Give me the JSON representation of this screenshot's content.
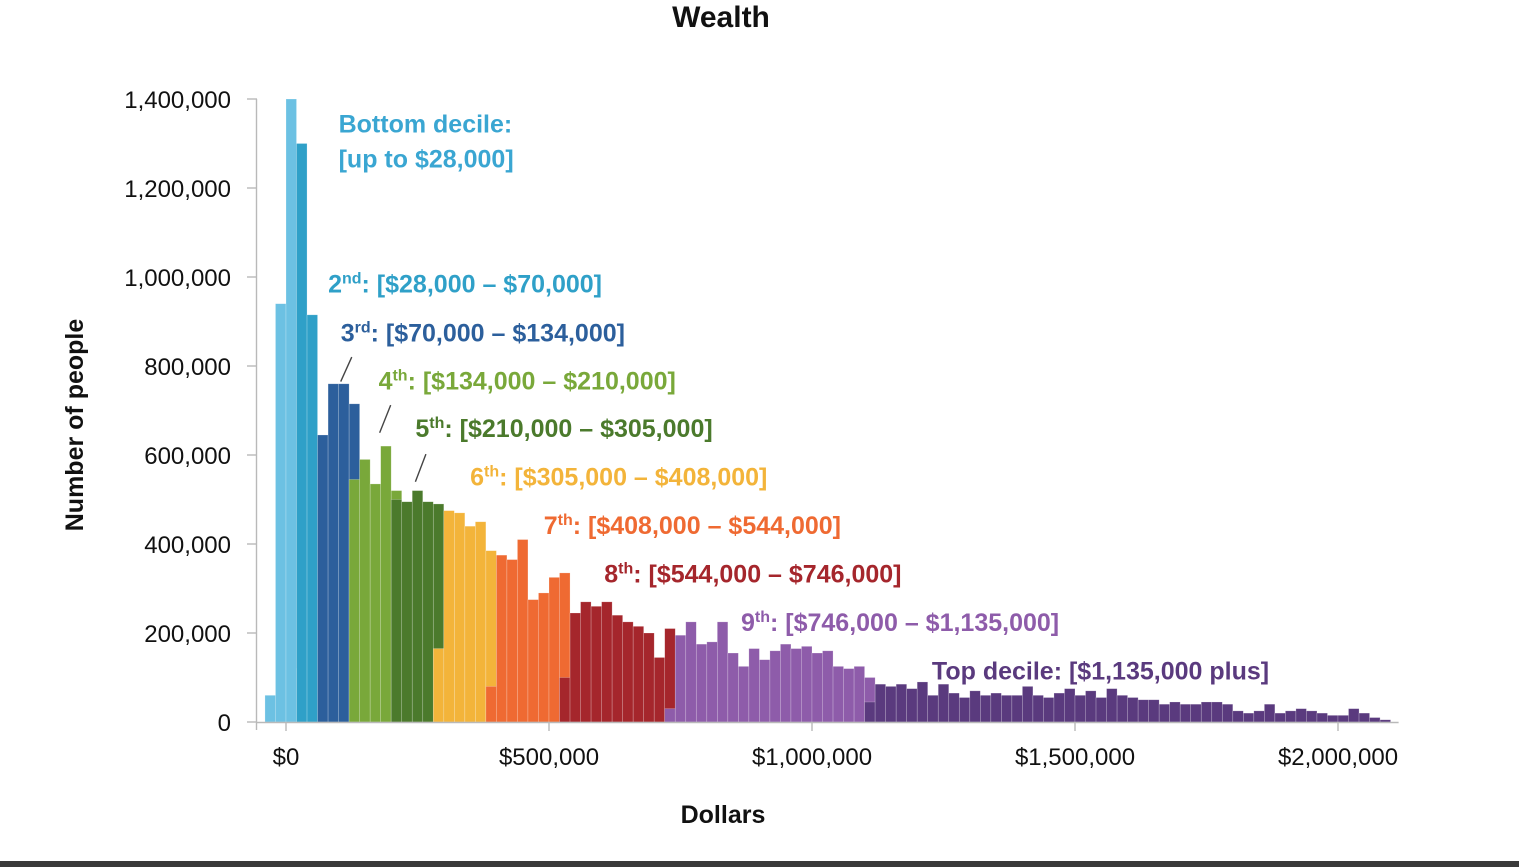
{
  "chart_data": {
    "type": "bar",
    "title": "Wealth",
    "xlabel": "Dollars",
    "ylabel": "Number of people",
    "xlim": [
      -45000,
      2100000
    ],
    "ylim": [
      0,
      1400000
    ],
    "bin_width": 20000,
    "x_ticks": [
      {
        "value": 0,
        "label": "$0"
      },
      {
        "value": 500000,
        "label": "$500,000"
      },
      {
        "value": 1000000,
        "label": "$1,000,000"
      },
      {
        "value": 1500000,
        "label": "$1,500,000"
      },
      {
        "value": 2000000,
        "label": "$2,000,000"
      }
    ],
    "y_ticks": [
      {
        "value": 0,
        "label": "0"
      },
      {
        "value": 200000,
        "label": "200,000"
      },
      {
        "value": 400000,
        "label": "400,000"
      },
      {
        "value": 600000,
        "label": "600,000"
      },
      {
        "value": 800000,
        "label": "800,000"
      },
      {
        "value": 1000000,
        "label": "1,000,000"
      },
      {
        "value": 1200000,
        "label": "1,200,000"
      },
      {
        "value": 1400000,
        "label": "1,400,000"
      }
    ],
    "series": [
      {
        "name": "Bottom decile",
        "color": "#6cc1e3",
        "bins": [
          [
            -40000,
            60000
          ],
          [
            -20000,
            940000
          ],
          [
            0,
            1400000
          ],
          [
            20000,
            120000
          ]
        ]
      },
      {
        "name": "2nd",
        "color": "#2fa0c8",
        "bins": [
          [
            20000,
            1300000
          ],
          [
            40000,
            915000
          ]
        ]
      },
      {
        "name": "3rd",
        "color": "#2c5f9c",
        "bins": [
          [
            60000,
            645000
          ],
          [
            80000,
            760000
          ],
          [
            100000,
            760000
          ],
          [
            120000,
            715000
          ]
        ]
      },
      {
        "name": "4th",
        "color": "#79a83a",
        "bins": [
          [
            120000,
            545000
          ],
          [
            140000,
            590000
          ],
          [
            160000,
            535000
          ],
          [
            180000,
            620000
          ],
          [
            200000,
            520000
          ]
        ]
      },
      {
        "name": "5th",
        "color": "#4b7a2c",
        "bins": [
          [
            200000,
            500000
          ],
          [
            220000,
            495000
          ],
          [
            240000,
            520000
          ],
          [
            260000,
            495000
          ],
          [
            280000,
            490000
          ]
        ]
      },
      {
        "name": "6th",
        "color": "#f3b43a",
        "bins": [
          [
            280000,
            165000
          ],
          [
            300000,
            475000
          ],
          [
            320000,
            470000
          ],
          [
            340000,
            440000
          ],
          [
            360000,
            450000
          ],
          [
            380000,
            385000
          ]
        ]
      },
      {
        "name": "7th",
        "color": "#ef6a32",
        "bins": [
          [
            380000,
            80000
          ],
          [
            400000,
            375000
          ],
          [
            420000,
            365000
          ],
          [
            440000,
            410000
          ],
          [
            460000,
            275000
          ],
          [
            480000,
            290000
          ],
          [
            500000,
            325000
          ],
          [
            520000,
            335000
          ]
        ]
      },
      {
        "name": "8th",
        "color": "#a5262c",
        "bins": [
          [
            520000,
            100000
          ],
          [
            540000,
            245000
          ],
          [
            560000,
            270000
          ],
          [
            580000,
            260000
          ],
          [
            600000,
            270000
          ],
          [
            620000,
            240000
          ],
          [
            640000,
            225000
          ],
          [
            660000,
            215000
          ],
          [
            680000,
            200000
          ],
          [
            700000,
            145000
          ],
          [
            720000,
            210000
          ]
        ]
      },
      {
        "name": "9th",
        "color": "#8e5caa",
        "bins": [
          [
            720000,
            30000
          ],
          [
            740000,
            195000
          ],
          [
            760000,
            225000
          ],
          [
            780000,
            175000
          ],
          [
            800000,
            180000
          ],
          [
            820000,
            225000
          ],
          [
            840000,
            155000
          ],
          [
            860000,
            125000
          ],
          [
            880000,
            165000
          ],
          [
            900000,
            140000
          ],
          [
            920000,
            160000
          ],
          [
            940000,
            175000
          ],
          [
            960000,
            165000
          ],
          [
            980000,
            170000
          ],
          [
            1000000,
            155000
          ],
          [
            1020000,
            160000
          ],
          [
            1040000,
            125000
          ],
          [
            1060000,
            120000
          ],
          [
            1080000,
            125000
          ],
          [
            1100000,
            100000
          ]
        ]
      },
      {
        "name": "Top decile",
        "color": "#5a3a7e",
        "bins": [
          [
            1100000,
            45000
          ],
          [
            1120000,
            85000
          ],
          [
            1140000,
            80000
          ],
          [
            1160000,
            85000
          ],
          [
            1180000,
            75000
          ],
          [
            1200000,
            90000
          ],
          [
            1220000,
            60000
          ],
          [
            1240000,
            85000
          ],
          [
            1260000,
            65000
          ],
          [
            1280000,
            55000
          ],
          [
            1300000,
            70000
          ],
          [
            1320000,
            60000
          ],
          [
            1340000,
            65000
          ],
          [
            1360000,
            60000
          ],
          [
            1380000,
            60000
          ],
          [
            1400000,
            80000
          ],
          [
            1420000,
            60000
          ],
          [
            1440000,
            55000
          ],
          [
            1460000,
            65000
          ],
          [
            1480000,
            75000
          ],
          [
            1500000,
            60000
          ],
          [
            1520000,
            70000
          ],
          [
            1540000,
            55000
          ],
          [
            1560000,
            75000
          ],
          [
            1580000,
            60000
          ],
          [
            1600000,
            55000
          ],
          [
            1620000,
            50000
          ],
          [
            1640000,
            50000
          ],
          [
            1660000,
            40000
          ],
          [
            1680000,
            45000
          ],
          [
            1700000,
            40000
          ],
          [
            1720000,
            40000
          ],
          [
            1740000,
            45000
          ],
          [
            1760000,
            45000
          ],
          [
            1780000,
            40000
          ],
          [
            1800000,
            25000
          ],
          [
            1820000,
            20000
          ],
          [
            1840000,
            25000
          ],
          [
            1860000,
            40000
          ],
          [
            1880000,
            20000
          ],
          [
            1900000,
            25000
          ],
          [
            1920000,
            30000
          ],
          [
            1940000,
            25000
          ],
          [
            1960000,
            20000
          ],
          [
            1980000,
            15000
          ],
          [
            2000000,
            15000
          ],
          [
            2020000,
            30000
          ],
          [
            2040000,
            20000
          ],
          [
            2060000,
            10000
          ],
          [
            2080000,
            5000
          ]
        ]
      }
    ],
    "annotations": [
      {
        "series": "Bottom decile",
        "lines": [
          {
            "rank": "Bottom decile:",
            "sup": "",
            "range": ""
          },
          {
            "rank": "",
            "sup": "",
            "range": "[up to $28,000]"
          }
        ],
        "x": 100000,
        "y": 1325000,
        "color": "#3aa6d2"
      },
      {
        "series": "2nd",
        "lines": [
          {
            "rank": "2",
            "sup": "nd",
            "range": ": [$28,000 – $70,000]"
          }
        ],
        "x": 80000,
        "y": 965000,
        "color": "#2fa0c8"
      },
      {
        "series": "3rd",
        "lines": [
          {
            "rank": "3",
            "sup": "rd",
            "range": ": [$70,000 – $134,000]"
          }
        ],
        "x": 104000,
        "y": 855000,
        "color": "#2c5f9c",
        "pointer": [
          [
            125000,
            820000
          ],
          [
            104000,
            765000
          ]
        ]
      },
      {
        "series": "4th",
        "lines": [
          {
            "rank": "4",
            "sup": "th",
            "range": ": [$134,000 – $210,000]"
          }
        ],
        "x": 176000,
        "y": 747000,
        "color": "#79a83a",
        "pointer": [
          [
            199000,
            712000
          ],
          [
            178000,
            650000
          ]
        ]
      },
      {
        "series": "5th",
        "lines": [
          {
            "rank": "5",
            "sup": "th",
            "range": ": [$210,000 – $305,000]"
          }
        ],
        "x": 246000,
        "y": 640000,
        "color": "#4b7a2c",
        "pointer": [
          [
            266000,
            602000
          ],
          [
            246000,
            540000
          ]
        ]
      },
      {
        "series": "6th",
        "lines": [
          {
            "rank": "6",
            "sup": "th",
            "range": ": [$305,000 – $408,000]"
          }
        ],
        "x": 350000,
        "y": 531000,
        "color": "#f3b43a"
      },
      {
        "series": "7th",
        "lines": [
          {
            "rank": "7",
            "sup": "th",
            "range": ": [$408,000 – $544,000]"
          }
        ],
        "x": 490000,
        "y": 423000,
        "color": "#ef6a32"
      },
      {
        "series": "8th",
        "lines": [
          {
            "rank": "8",
            "sup": "th",
            "range": ": [$544,000 – $746,000]"
          }
        ],
        "x": 605000,
        "y": 314000,
        "color": "#a5262c"
      },
      {
        "series": "9th",
        "lines": [
          {
            "rank": "9",
            "sup": "th",
            "range": ": [$746,000 – $1,135,000]"
          }
        ],
        "x": 865000,
        "y": 205000,
        "color": "#8e5caa"
      },
      {
        "series": "Top decile",
        "lines": [
          {
            "rank": "Top decile: [$1,135,000 plus]",
            "sup": "",
            "range": ""
          }
        ],
        "x": 1228000,
        "y": 96000,
        "color": "#5a3a7e"
      }
    ]
  }
}
